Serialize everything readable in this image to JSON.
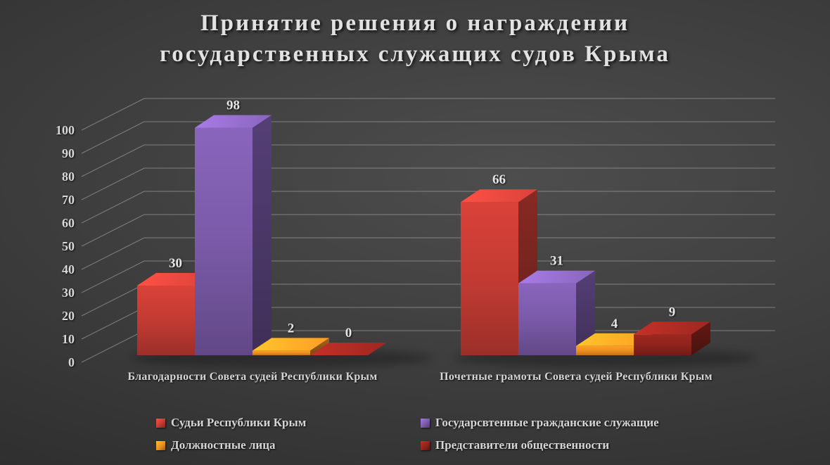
{
  "title": {
    "line1": "Принятие решения о награждении",
    "line2": "государственных служащих судов Крыма"
  },
  "chart_data": {
    "type": "bar",
    "effect": "3d-clustered-column",
    "title": "Принятие решения о награждении государственных служащих судов Крыма",
    "categories": [
      "Благодарности Совета судей Республики Крым",
      "Почетные грамоты Совета судей Республики Крым"
    ],
    "series": [
      {
        "name": "Судьи Республики Крым",
        "values": [
          30,
          66
        ],
        "color": "#c23b33"
      },
      {
        "name": "Государсвтенные гражданские служащие",
        "values": [
          98,
          31
        ],
        "color": "#7a5aa8"
      },
      {
        "name": "Должностные лица",
        "values": [
          2,
          4
        ],
        "color": "#ee8e20"
      },
      {
        "name": "Представители общественности",
        "values": [
          0,
          9
        ],
        "color": "#8e231d"
      }
    ],
    "ylim": [
      0,
      100
    ],
    "yticks": [
      0,
      10,
      20,
      30,
      40,
      50,
      60,
      70,
      80,
      90,
      100
    ],
    "grid": true,
    "gridline_color": "#a8a8a8",
    "text_color": "#d9d9d9",
    "legend_position": "bottom",
    "data_labels": true
  }
}
